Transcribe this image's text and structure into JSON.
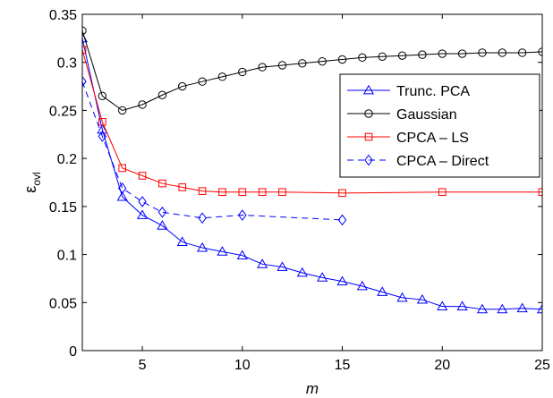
{
  "chart_data": {
    "type": "line",
    "title": "",
    "xlabel": "m",
    "ylabel_main": "ε",
    "ylabel_sub": "ovl",
    "xlim": [
      2,
      25
    ],
    "ylim": [
      0,
      0.35
    ],
    "xticks": [
      5,
      10,
      15,
      20,
      25
    ],
    "yticks": [
      0,
      0.05,
      0.1,
      0.15,
      0.2,
      0.25,
      0.3,
      0.35
    ],
    "xtick_labels": [
      "5",
      "10",
      "15",
      "20",
      "25"
    ],
    "ytick_labels": [
      "0",
      "0.05",
      "0.1",
      "0.15",
      "0.2",
      "0.25",
      "0.3",
      "0.35"
    ],
    "grid": false,
    "legend_position": "top-right",
    "series": [
      {
        "name": "Trunc. PCA",
        "color": "#0000ff",
        "line_style": "solid",
        "marker": "triangle",
        "x": [
          2,
          3,
          4,
          5,
          6,
          7,
          8,
          9,
          10,
          11,
          12,
          13,
          14,
          15,
          16,
          17,
          18,
          19,
          20,
          21,
          22,
          23,
          24,
          25
        ],
        "y": [
          0.325,
          0.23,
          0.16,
          0.141,
          0.13,
          0.113,
          0.107,
          0.103,
          0.099,
          0.09,
          0.087,
          0.081,
          0.076,
          0.072,
          0.067,
          0.061,
          0.055,
          0.053,
          0.046,
          0.046,
          0.043,
          0.043,
          0.044,
          0.043
        ]
      },
      {
        "name": "Gaussian",
        "color": "#000000",
        "line_style": "solid",
        "marker": "circle",
        "x": [
          2,
          3,
          4,
          5,
          6,
          7,
          8,
          9,
          10,
          11,
          12,
          13,
          14,
          15,
          16,
          17,
          18,
          19,
          20,
          21,
          22,
          23,
          24,
          25
        ],
        "y": [
          0.333,
          0.265,
          0.25,
          0.256,
          0.266,
          0.275,
          0.28,
          0.285,
          0.29,
          0.295,
          0.297,
          0.299,
          0.301,
          0.303,
          0.305,
          0.306,
          0.307,
          0.308,
          0.309,
          0.309,
          0.31,
          0.31,
          0.31,
          0.311
        ]
      },
      {
        "name": "CPCA – LS",
        "color": "#ff0000",
        "line_style": "solid",
        "marker": "square",
        "x": [
          2,
          3,
          4,
          5,
          6,
          7,
          8,
          9,
          10,
          11,
          12,
          15,
          20,
          25
        ],
        "y": [
          0.313,
          0.238,
          0.19,
          0.182,
          0.174,
          0.17,
          0.166,
          0.165,
          0.165,
          0.165,
          0.165,
          0.164,
          0.165,
          0.165
        ]
      },
      {
        "name": "CPCA – Direct",
        "color": "#0000ff",
        "line_style": "dashed",
        "marker": "diamond",
        "x": [
          2,
          3,
          4,
          5,
          6,
          8,
          10,
          15
        ],
        "y": [
          0.28,
          0.223,
          0.169,
          0.155,
          0.144,
          0.138,
          0.141,
          0.136
        ]
      }
    ]
  }
}
